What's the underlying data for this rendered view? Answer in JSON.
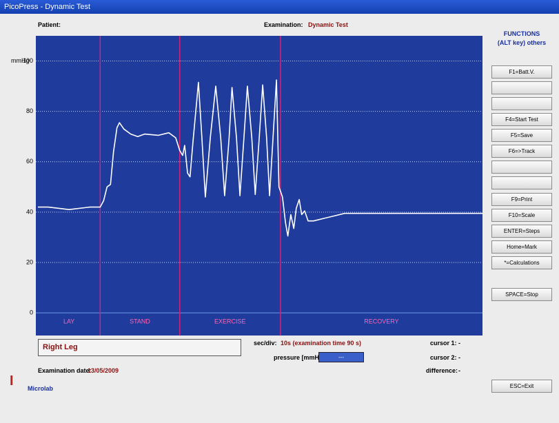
{
  "window": {
    "title": "PicoPress - Dynamic Test"
  },
  "header": {
    "patient_label": "Patient:",
    "examination_label": "Examination:",
    "examination": "Dynamic Test"
  },
  "functions": {
    "title": "FUNCTIONS",
    "subtitle": "(ALT key) others",
    "buttons": [
      "F1=Batt.V.",
      "F4=Start Test",
      "F5=Save",
      "F6=>Track",
      "F9=Print",
      "F10=Scale",
      "ENTER=Steps",
      "Home=Mark",
      "*=Calculations",
      "SPACE=Stop",
      "ESC=Exit"
    ]
  },
  "chart_data": {
    "type": "line",
    "y_label": "mmHg",
    "xlim": [
      0,
      90
    ],
    "ylim": [
      -9,
      110
    ],
    "yticks": [
      0,
      20,
      40,
      60,
      80,
      100
    ],
    "grid": true,
    "background": "#1f3b9c",
    "x": [
      0,
      2.1,
      6.3,
      10.5,
      12.6,
      13.3,
      14,
      14.7,
      15.3,
      16,
      16.5,
      17.4,
      18.8,
      20.2,
      21.6,
      24.4,
      26.5,
      27.9,
      28.7,
      29.3,
      29.7,
      30.3,
      30.8,
      31.4,
      32.5,
      33.2,
      33.9,
      34.9,
      36,
      37,
      37.8,
      38.7,
      39.3,
      40.2,
      40.9,
      41.7,
      42.4,
      43.3,
      44,
      44.8,
      45.5,
      46.3,
      46.9,
      47.6,
      48.3,
      48.8,
      49.5,
      50.1,
      50.6,
      51.2,
      51.8,
      52.3,
      52.9,
      53.4,
      54,
      54.7,
      55.8,
      57.9,
      60,
      62.1,
      90
    ],
    "series": [
      {
        "color": "#ffffff",
        "values": [
          42,
          42,
          41,
          42,
          42,
          44.5,
          50,
          51,
          64,
          73.5,
          75.5,
          73,
          71,
          70,
          71,
          70.5,
          71.5,
          69.5,
          64.5,
          62.5,
          66.5,
          55.5,
          54,
          68,
          91.5,
          69.5,
          46,
          69.5,
          90,
          69.5,
          46.5,
          69.5,
          89.5,
          69.5,
          46.5,
          69.5,
          90,
          69.5,
          47,
          69.5,
          90.5,
          69.5,
          46.5,
          69.5,
          92.5,
          50,
          46,
          36,
          30.5,
          39,
          33.5,
          41.5,
          45,
          39,
          40.5,
          36.5,
          36.5,
          37.5,
          38.5,
          39.5,
          39.5
        ]
      }
    ],
    "phases": {
      "color": "#d0237e",
      "label_color": "#ff66b3",
      "labels": [
        "LAY",
        "STAND",
        "EXERCISE",
        "RECOVERY"
      ],
      "boundaries": [
        12.6,
        28.7,
        49.1
      ]
    }
  },
  "footer": {
    "leg": "Right Leg",
    "sec_div_label": "sec/div:",
    "sec_div": "10s (examination time 90 s)",
    "pressure_label": "pressure [mmHg]:",
    "pressure": "---",
    "cursor1_label": "cursor 1:",
    "cursor1": "-",
    "cursor2_label": "cursor 2:",
    "cursor2": "-",
    "difference_label": "difference:",
    "difference": "-",
    "date_label": "Examination date:",
    "date": "13/05/2009",
    "brand": "Microlab"
  }
}
